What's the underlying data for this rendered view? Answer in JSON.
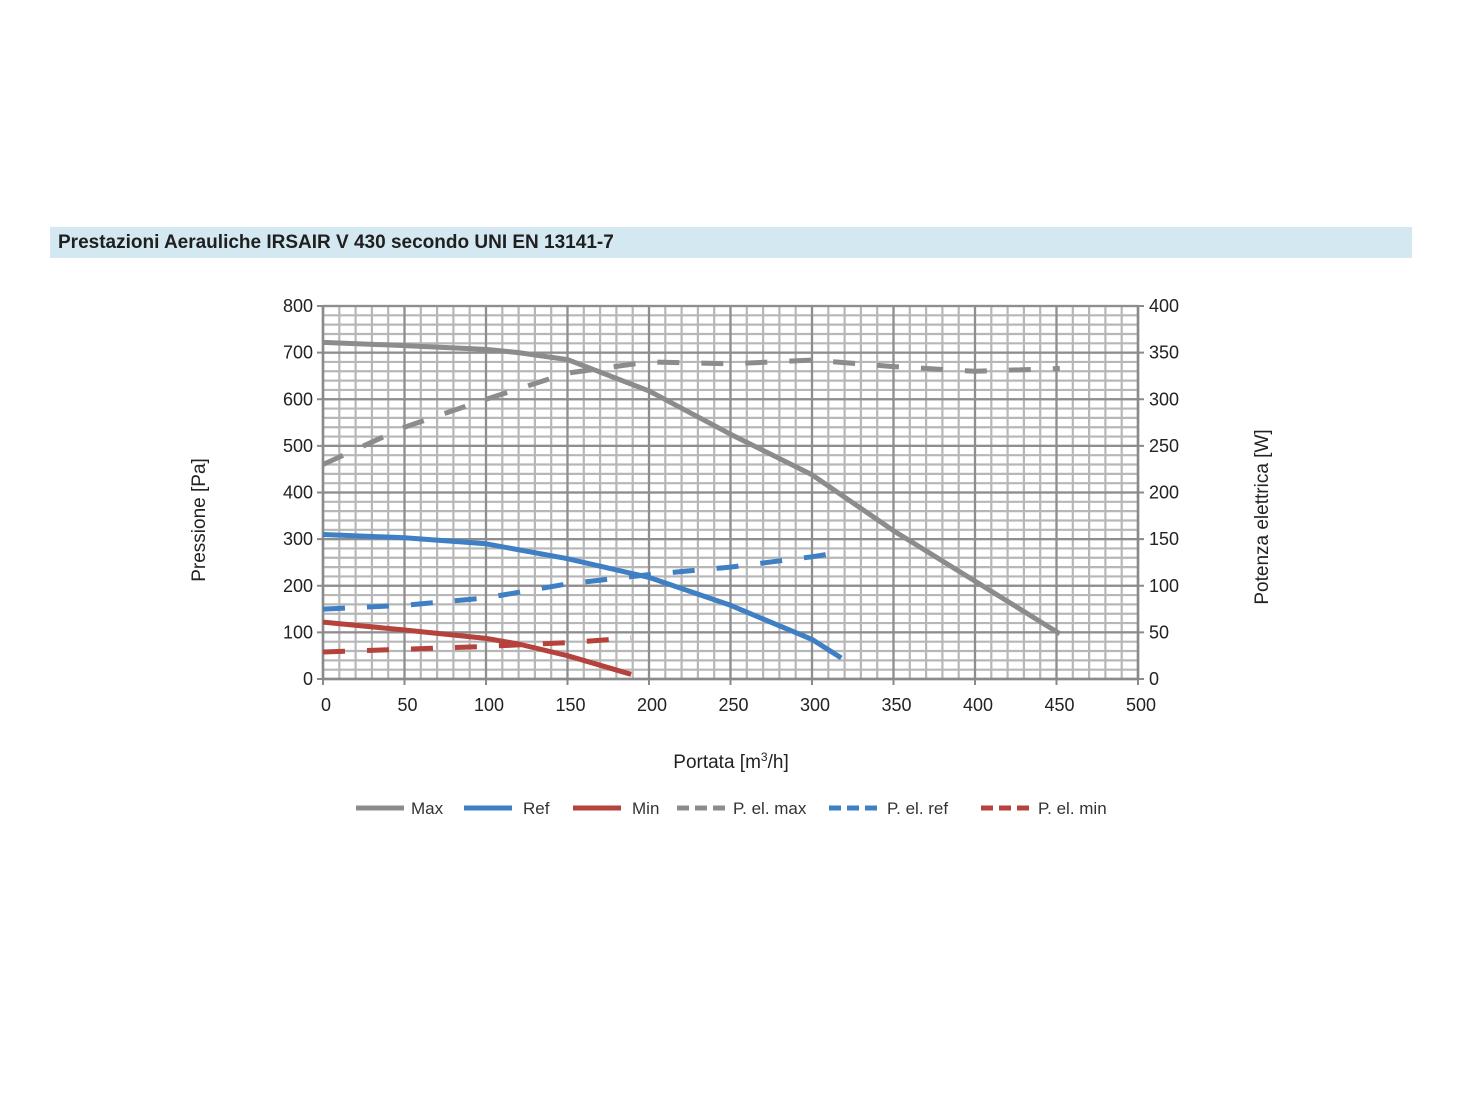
{
  "title": "Prestazioni Aerauliche IRSAIR V 430 secondo UNI EN 13141-7",
  "chart_data": {
    "type": "line",
    "xlabel_prefix": "Portata [m",
    "xlabel_sup": "3",
    "xlabel_suffix": "/h]",
    "ylabel_left": "Pressione [Pa]",
    "ylabel_right": "Potenza elettrica [W]",
    "xlim": [
      0,
      500
    ],
    "ylim_left": [
      0,
      800
    ],
    "ylim_right": [
      0,
      400
    ],
    "x_ticks": [
      0,
      50,
      100,
      150,
      200,
      250,
      300,
      350,
      400,
      450,
      500
    ],
    "y_left_ticks": [
      0,
      100,
      200,
      300,
      400,
      500,
      600,
      700,
      800
    ],
    "y_right_ticks": [
      0,
      50,
      100,
      150,
      200,
      250,
      300,
      350,
      400
    ],
    "grid": true,
    "legend_position": "bottom",
    "series": [
      {
        "name": "Max",
        "axis": "left",
        "dashed": false,
        "color": "#8c8c8c",
        "points": [
          [
            0,
            722
          ],
          [
            50,
            715
          ],
          [
            100,
            707
          ],
          [
            120,
            700
          ],
          [
            150,
            685
          ],
          [
            200,
            618
          ],
          [
            250,
            525
          ],
          [
            300,
            438
          ],
          [
            350,
            318
          ],
          [
            400,
            210
          ],
          [
            452,
            97
          ]
        ]
      },
      {
        "name": "Ref",
        "axis": "left",
        "dashed": false,
        "color": "#3f7fc4",
        "points": [
          [
            0,
            310
          ],
          [
            50,
            303
          ],
          [
            100,
            290
          ],
          [
            150,
            258
          ],
          [
            200,
            218
          ],
          [
            250,
            158
          ],
          [
            300,
            85
          ],
          [
            318,
            45
          ]
        ]
      },
      {
        "name": "Min",
        "axis": "left",
        "dashed": false,
        "color": "#b5423b",
        "points": [
          [
            0,
            122
          ],
          [
            50,
            105
          ],
          [
            100,
            87
          ],
          [
            120,
            75
          ],
          [
            150,
            50
          ],
          [
            189,
            10
          ]
        ]
      },
      {
        "name": "P. el. max",
        "axis": "right",
        "dashed": true,
        "color": "#8c8c8c",
        "points": [
          [
            0,
            230
          ],
          [
            50,
            270
          ],
          [
            100,
            300
          ],
          [
            150,
            328
          ],
          [
            200,
            340
          ],
          [
            250,
            338
          ],
          [
            300,
            342
          ],
          [
            350,
            335
          ],
          [
            400,
            330
          ],
          [
            452,
            333
          ]
        ]
      },
      {
        "name": "P. el. ref",
        "axis": "right",
        "dashed": true,
        "color": "#3f7fc4",
        "points": [
          [
            0,
            75
          ],
          [
            50,
            79
          ],
          [
            100,
            87
          ],
          [
            150,
            102
          ],
          [
            200,
            112
          ],
          [
            250,
            120
          ],
          [
            300,
            131
          ],
          [
            318,
            136
          ]
        ]
      },
      {
        "name": "P. el. min",
        "axis": "right",
        "dashed": true,
        "color": "#b5423b",
        "points": [
          [
            0,
            29
          ],
          [
            50,
            32
          ],
          [
            100,
            35
          ],
          [
            150,
            39
          ],
          [
            189,
            44
          ]
        ]
      }
    ]
  }
}
